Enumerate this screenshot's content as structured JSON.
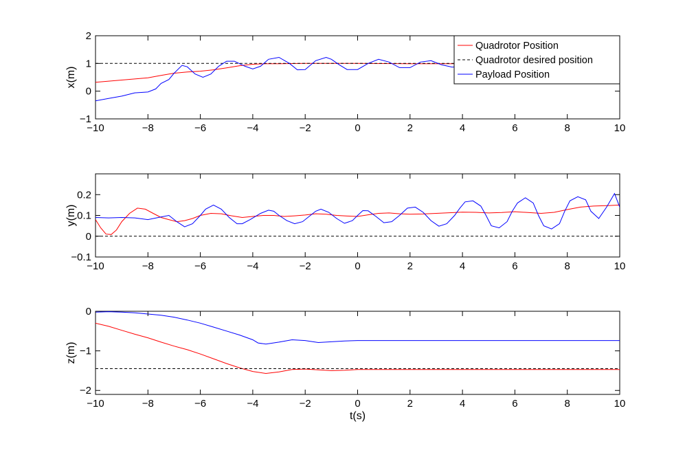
{
  "chart_data": [
    {
      "type": "line",
      "ylabel": "x(m)",
      "xlabel": "",
      "xlim": [
        -10,
        10
      ],
      "ylim": [
        -1,
        2
      ],
      "xticks": [
        -10,
        -8,
        -6,
        -4,
        -2,
        0,
        2,
        4,
        6,
        8,
        10
      ],
      "yticks": [
        -1,
        0,
        1,
        2
      ],
      "grid": false,
      "legend": {
        "placement": "top-right",
        "entries": [
          "Quadrotor Position",
          "Quadrotor desired position",
          "Payload Position"
        ]
      },
      "series": [
        {
          "name": "Quadrotor Position",
          "color": "#ff0000",
          "style": "solid",
          "x": [
            -10,
            -9,
            -8.5,
            -8,
            -7.5,
            -7,
            -6.5,
            -6,
            -5.5,
            -5,
            -4.5,
            -4,
            -3.5,
            -3,
            -2,
            -1,
            0,
            2,
            4,
            6,
            8,
            10
          ],
          "y": [
            0.32,
            0.4,
            0.44,
            0.48,
            0.57,
            0.65,
            0.69,
            0.72,
            0.77,
            0.84,
            0.92,
            0.97,
            0.99,
            0.99,
            1.0,
            1.0,
            1.0,
            0.99,
            0.99,
            0.99,
            0.99,
            0.99
          ]
        },
        {
          "name": "Quadrotor desired position",
          "color": "#000000",
          "style": "dashed",
          "x": [
            -10,
            10
          ],
          "y": [
            1,
            1
          ]
        },
        {
          "name": "Payload Position",
          "color": "#0000ff",
          "style": "solid",
          "x": [
            -10,
            -9.5,
            -9,
            -8.5,
            -8,
            -7.7,
            -7.5,
            -7.2,
            -7,
            -6.7,
            -6.5,
            -6.2,
            -5.9,
            -5.6,
            -5.3,
            -5,
            -4.7,
            -4.3,
            -4,
            -3.7,
            -3.4,
            -3,
            -2.6,
            -2.3,
            -2,
            -1.6,
            -1.2,
            -1,
            -0.7,
            -0.4,
            0,
            0.4,
            0.8,
            1.2,
            1.6,
            2,
            2.4,
            2.8,
            3.2,
            3.6,
            4,
            4.3
          ],
          "y": [
            -0.35,
            -0.26,
            -0.18,
            -0.06,
            -0.03,
            0.08,
            0.28,
            0.42,
            0.65,
            0.93,
            0.88,
            0.62,
            0.5,
            0.62,
            0.9,
            1.08,
            1.08,
            0.9,
            0.8,
            0.9,
            1.15,
            1.22,
            1.0,
            0.77,
            0.78,
            1.1,
            1.22,
            1.15,
            0.95,
            0.78,
            0.78,
            1.0,
            1.15,
            1.05,
            0.85,
            0.85,
            1.05,
            1.1,
            0.95,
            0.87,
            0.88,
            0.92
          ]
        }
      ]
    },
    {
      "type": "line",
      "ylabel": "y(m)",
      "xlabel": "",
      "xlim": [
        -10,
        10
      ],
      "ylim": [
        -0.1,
        0.3
      ],
      "xticks": [
        -10,
        -8,
        -6,
        -4,
        -2,
        0,
        2,
        4,
        6,
        8,
        10
      ],
      "yticks": [
        -0.1,
        0,
        0.1,
        0.2
      ],
      "grid": false,
      "series": [
        {
          "name": "Quadrotor Position",
          "color": "#ff0000",
          "style": "solid",
          "x": [
            -10,
            -9.8,
            -9.6,
            -9.4,
            -9.2,
            -9,
            -8.7,
            -8.4,
            -8.1,
            -7.8,
            -7.5,
            -7.2,
            -6.9,
            -6.6,
            -6.3,
            -6,
            -5.6,
            -5.2,
            -4.8,
            -4.4,
            -4,
            -3.6,
            -3.2,
            -2.8,
            -2.4,
            -2,
            -1.6,
            -1.2,
            -0.8,
            -0.4,
            0,
            0.4,
            0.8,
            1.2,
            1.6,
            2,
            2.5,
            3,
            3.5,
            4,
            4.5,
            5,
            5.5,
            6,
            6.5,
            7,
            7.5,
            8,
            8.5,
            9,
            9.5,
            10
          ],
          "y": [
            0.08,
            0.04,
            0.01,
            0.008,
            0.03,
            0.07,
            0.11,
            0.135,
            0.13,
            0.11,
            0.09,
            0.08,
            0.07,
            0.075,
            0.085,
            0.1,
            0.11,
            0.108,
            0.098,
            0.09,
            0.095,
            0.1,
            0.1,
            0.095,
            0.098,
            0.102,
            0.108,
            0.106,
            0.1,
            0.097,
            0.095,
            0.103,
            0.11,
            0.112,
            0.108,
            0.106,
            0.107,
            0.11,
            0.113,
            0.116,
            0.115,
            0.112,
            0.114,
            0.118,
            0.114,
            0.11,
            0.115,
            0.128,
            0.14,
            0.145,
            0.147,
            0.15
          ]
        },
        {
          "name": "Quadrotor desired position",
          "color": "#000000",
          "style": "dashed",
          "x": [
            -10,
            10
          ],
          "y": [
            0,
            0
          ]
        },
        {
          "name": "Payload Position",
          "color": "#0000ff",
          "style": "solid",
          "x": [
            -10,
            -9.5,
            -9,
            -8.5,
            -8,
            -7.6,
            -7.2,
            -6.9,
            -6.6,
            -6.3,
            -6,
            -5.8,
            -5.5,
            -5.2,
            -4.9,
            -4.6,
            -4.4,
            -4.1,
            -3.7,
            -3.4,
            -3.2,
            -3,
            -2.7,
            -2.4,
            -2.1,
            -1.8,
            -1.6,
            -1.4,
            -1.1,
            -0.8,
            -0.5,
            -0.2,
            0,
            0.2,
            0.4,
            0.7,
            1,
            1.3,
            1.6,
            1.9,
            2.2,
            2.5,
            2.8,
            3.1,
            3.4,
            3.7,
            3.9,
            4.1,
            4.4,
            4.7,
            4.9,
            5.1,
            5.4,
            5.7,
            5.9,
            6.1,
            6.4,
            6.7,
            6.9,
            7.1,
            7.4,
            7.7,
            7.9,
            8.1,
            8.4,
            8.7,
            8.9,
            9.2,
            9.5,
            9.8,
            10
          ],
          "y": [
            0.09,
            0.088,
            0.09,
            0.088,
            0.08,
            0.09,
            0.1,
            0.07,
            0.045,
            0.06,
            0.1,
            0.13,
            0.15,
            0.13,
            0.09,
            0.06,
            0.06,
            0.08,
            0.11,
            0.125,
            0.12,
            0.1,
            0.075,
            0.06,
            0.07,
            0.1,
            0.12,
            0.13,
            0.115,
            0.085,
            0.062,
            0.075,
            0.1,
            0.123,
            0.122,
            0.095,
            0.065,
            0.07,
            0.1,
            0.135,
            0.14,
            0.115,
            0.075,
            0.048,
            0.06,
            0.1,
            0.135,
            0.165,
            0.17,
            0.145,
            0.1,
            0.05,
            0.04,
            0.07,
            0.12,
            0.16,
            0.185,
            0.16,
            0.1,
            0.05,
            0.035,
            0.06,
            0.12,
            0.17,
            0.19,
            0.175,
            0.12,
            0.085,
            0.14,
            0.205,
            0.14
          ]
        }
      ]
    },
    {
      "type": "line",
      "ylabel": "z(m)",
      "xlabel": "t(s)",
      "xlim": [
        -10,
        10
      ],
      "ylim": [
        -2.1,
        0
      ],
      "xticks": [
        -10,
        -8,
        -6,
        -4,
        -2,
        0,
        2,
        4,
        6,
        8,
        10
      ],
      "yticks": [
        -2,
        -1,
        0
      ],
      "grid": false,
      "series": [
        {
          "name": "Quadrotor Position",
          "color": "#ff0000",
          "style": "solid",
          "x": [
            -10,
            -9.5,
            -9,
            -8.5,
            -8,
            -7.5,
            -7,
            -6.5,
            -6,
            -5.5,
            -5,
            -4.5,
            -4,
            -3.5,
            -3,
            -2.5,
            -2,
            -1.5,
            -1,
            -0.5,
            0,
            1,
            2,
            3,
            4,
            5,
            6,
            7,
            8,
            9,
            10
          ],
          "y": [
            -0.3,
            -0.38,
            -0.48,
            -0.58,
            -0.67,
            -0.78,
            -0.88,
            -0.97,
            -1.08,
            -1.2,
            -1.32,
            -1.43,
            -1.52,
            -1.57,
            -1.53,
            -1.47,
            -1.46,
            -1.48,
            -1.5,
            -1.49,
            -1.47,
            -1.47,
            -1.47,
            -1.47,
            -1.47,
            -1.47,
            -1.47,
            -1.47,
            -1.47,
            -1.47,
            -1.47
          ]
        },
        {
          "name": "Quadrotor desired position",
          "color": "#000000",
          "style": "dashed",
          "x": [
            -10,
            10
          ],
          "y": [
            -1.45,
            -1.45
          ]
        },
        {
          "name": "Payload Position",
          "color": "#0000ff",
          "style": "solid",
          "x": [
            -10,
            -9.5,
            -9,
            -8.5,
            -8,
            -7.5,
            -7,
            -6.5,
            -6,
            -5.5,
            -5,
            -4.5,
            -4,
            -3.8,
            -3.5,
            -3,
            -2.5,
            -2,
            -1.5,
            -1,
            -0.5,
            0,
            1,
            2,
            3,
            4,
            5,
            6,
            7,
            8,
            9,
            10
          ],
          "y": [
            -0.02,
            -0.01,
            -0.02,
            -0.04,
            -0.07,
            -0.1,
            -0.15,
            -0.22,
            -0.3,
            -0.4,
            -0.5,
            -0.6,
            -0.72,
            -0.8,
            -0.83,
            -0.78,
            -0.72,
            -0.74,
            -0.79,
            -0.77,
            -0.75,
            -0.74,
            -0.74,
            -0.74,
            -0.74,
            -0.74,
            -0.74,
            -0.74,
            -0.74,
            -0.74,
            -0.74,
            -0.74
          ]
        }
      ]
    }
  ]
}
